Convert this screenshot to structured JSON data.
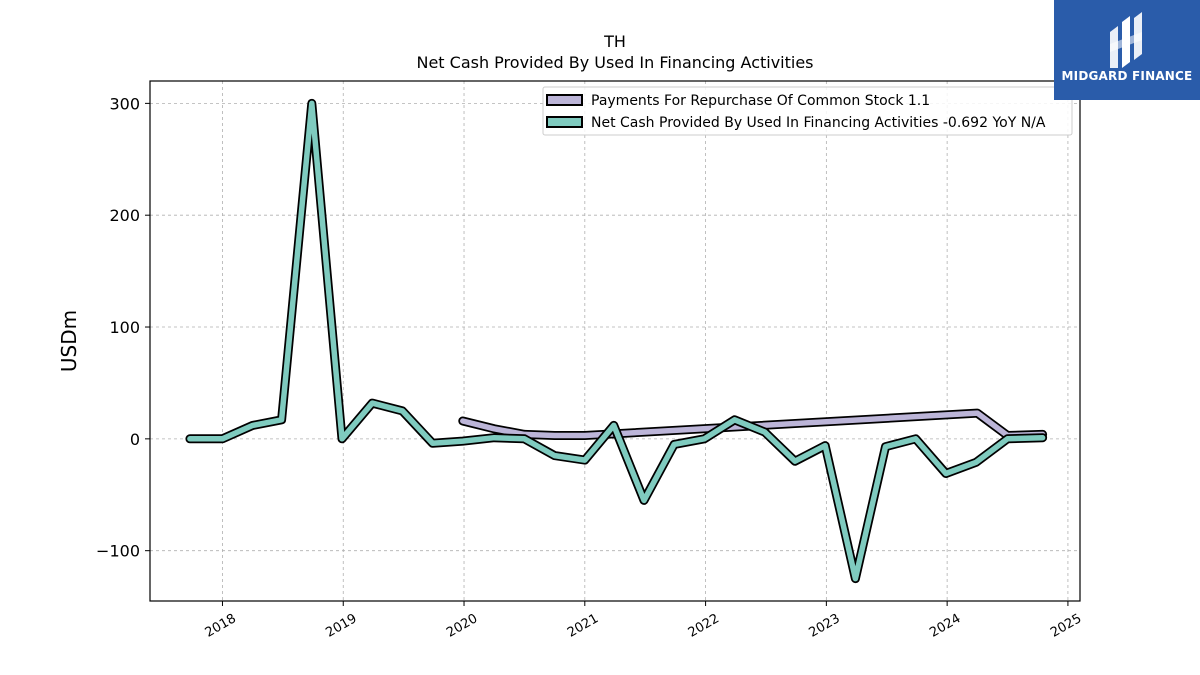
{
  "chart_data": {
    "type": "line",
    "title": "TH",
    "subtitle": "Net Cash Provided By Used In Financing Activities",
    "xlabel": "",
    "ylabel": "USDm",
    "ylim": [
      -145,
      320
    ],
    "xlim": [
      2017.4,
      2025.1
    ],
    "yticks": [
      300,
      200,
      100,
      0,
      -100
    ],
    "ytick_labels": [
      "300",
      "200",
      "100",
      "0",
      "−100"
    ],
    "xticks": [
      2018,
      2019,
      2020,
      2021,
      2022,
      2023,
      2024,
      2025
    ],
    "xtick_labels": [
      "2018",
      "2019",
      "2020",
      "2021",
      "2022",
      "2023",
      "2024",
      "2025"
    ],
    "grid": true,
    "legend_position": "top-right",
    "series": [
      {
        "name": "Payments For Repurchase Of Common Stock",
        "legend_label": "Payments For Repurchase Of Common Stock  1.1",
        "color": "#bcb5d8",
        "x": [
          2019.99,
          2020.25,
          2020.5,
          2020.75,
          2021.0,
          2024.25,
          2024.5,
          2024.79
        ],
        "y": [
          16,
          9,
          4,
          3,
          3,
          23,
          3,
          4
        ]
      },
      {
        "name": "Net Cash Provided By Used In Financing Activities",
        "legend_label": "Net Cash Provided By Used In Financing Activities  -0.692 YoY N/A",
        "color": "#7fcbbf",
        "x": [
          2017.73,
          2018.0,
          2018.25,
          2018.49,
          2018.74,
          2018.99,
          2019.24,
          2019.49,
          2019.74,
          2019.99,
          2020.25,
          2020.5,
          2020.75,
          2021.0,
          2021.24,
          2021.49,
          2021.74,
          2021.99,
          2022.24,
          2022.49,
          2022.74,
          2022.99,
          2023.24,
          2023.49,
          2023.74,
          2023.99,
          2024.24,
          2024.5,
          2024.79
        ],
        "y": [
          0,
          0,
          12,
          17,
          300,
          0,
          32,
          25,
          -4,
          -2,
          1,
          0,
          -15,
          -19,
          12,
          -55,
          -5,
          0,
          17,
          6,
          -20,
          -6,
          -125,
          -7,
          0,
          -31,
          -21,
          0,
          1
        ]
      }
    ]
  },
  "logo": {
    "text": "MIDGARD FINANCE"
  }
}
